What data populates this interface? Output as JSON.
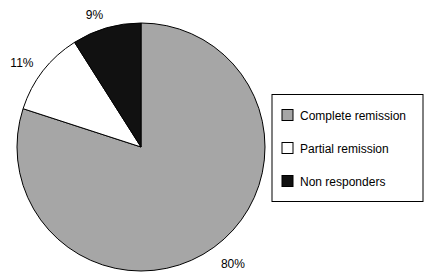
{
  "chart_data": {
    "type": "pie",
    "categories": [
      "Complete remission",
      "Partial remission",
      "Non responders"
    ],
    "values": [
      80,
      11,
      9
    ],
    "value_labels": [
      "80%",
      "11%",
      "9%"
    ],
    "colors": [
      "#a6a6a6",
      "#ffffff",
      "#111111"
    ],
    "data_labels": true,
    "legend": "right"
  }
}
